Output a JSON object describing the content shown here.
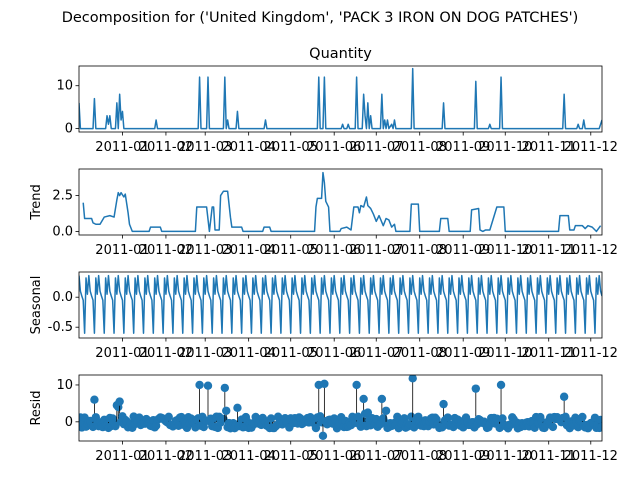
{
  "figure": {
    "suptitle": "Decomposition for ('United Kingdom', 'PACK 3 IRON ON DOG PATCHES')"
  },
  "chart_data": [
    {
      "type": "line",
      "title": "Quantity",
      "ylabel": "",
      "ylim": [
        -0.8,
        14.6
      ],
      "yticks": [
        0,
        10
      ],
      "xlim": [
        "2010-12-01",
        "2011-12-09"
      ],
      "xticks": [
        "2011-01",
        "2011-02",
        "2011-03",
        "2011-04",
        "2011-05",
        "2011-06",
        "2011-07",
        "2011-08",
        "2011-09",
        "2011-10",
        "2011-11",
        "2011-12"
      ],
      "points": [
        [
          "2010-12-01",
          6
        ],
        [
          "2010-12-02",
          0
        ],
        [
          "2010-12-11",
          0
        ],
        [
          "2010-12-12",
          7
        ],
        [
          "2010-12-13",
          0
        ],
        [
          "2010-12-20",
          0
        ],
        [
          "2010-12-21",
          3
        ],
        [
          "2010-12-22",
          1
        ],
        [
          "2010-12-23",
          3
        ],
        [
          "2010-12-24",
          0
        ],
        [
          "2010-12-27",
          0
        ],
        [
          "2010-12-28",
          6
        ],
        [
          "2010-12-29",
          0
        ],
        [
          "2010-12-30",
          8
        ],
        [
          "2010-12-31",
          2
        ],
        [
          "2011-01-01",
          4
        ],
        [
          "2011-01-02",
          0
        ],
        [
          "2011-01-24",
          0
        ],
        [
          "2011-01-25",
          2
        ],
        [
          "2011-01-26",
          0
        ],
        [
          "2011-02-24",
          0
        ],
        [
          "2011-02-25",
          12
        ],
        [
          "2011-02-26",
          0
        ],
        [
          "2011-03-02",
          0
        ],
        [
          "2011-03-03",
          12
        ],
        [
          "2011-03-04",
          0
        ],
        [
          "2011-03-14",
          0
        ],
        [
          "2011-03-15",
          12
        ],
        [
          "2011-03-16",
          0
        ],
        [
          "2011-03-17",
          2
        ],
        [
          "2011-03-18",
          0
        ],
        [
          "2011-03-23",
          0
        ],
        [
          "2011-03-24",
          4
        ],
        [
          "2011-03-25",
          0
        ],
        [
          "2011-04-12",
          0
        ],
        [
          "2011-04-13",
          2
        ],
        [
          "2011-04-14",
          0
        ],
        [
          "2011-05-20",
          0
        ],
        [
          "2011-05-21",
          12
        ],
        [
          "2011-05-22",
          0
        ],
        [
          "2011-05-24",
          0
        ],
        [
          "2011-05-25",
          12
        ],
        [
          "2011-05-26",
          0
        ],
        [
          "2011-06-06",
          0
        ],
        [
          "2011-06-07",
          1
        ],
        [
          "2011-06-08",
          0
        ],
        [
          "2011-06-10",
          0
        ],
        [
          "2011-06-11",
          1
        ],
        [
          "2011-06-12",
          0
        ],
        [
          "2011-06-16",
          0
        ],
        [
          "2011-06-17",
          12
        ],
        [
          "2011-06-18",
          0
        ],
        [
          "2011-06-21",
          0
        ],
        [
          "2011-06-22",
          8
        ],
        [
          "2011-06-23",
          3
        ],
        [
          "2011-06-24",
          0
        ],
        [
          "2011-06-25",
          6
        ],
        [
          "2011-06-26",
          0
        ],
        [
          "2011-06-27",
          3
        ],
        [
          "2011-06-28",
          0
        ],
        [
          "2011-07-04",
          0
        ],
        [
          "2011-07-05",
          8
        ],
        [
          "2011-07-06",
          0
        ],
        [
          "2011-07-07",
          2
        ],
        [
          "2011-07-08",
          0
        ],
        [
          "2011-07-09",
          2
        ],
        [
          "2011-07-10",
          0
        ],
        [
          "2011-07-12",
          1
        ],
        [
          "2011-07-13",
          0
        ],
        [
          "2011-07-14",
          2
        ],
        [
          "2011-07-15",
          0
        ],
        [
          "2011-07-26",
          0
        ],
        [
          "2011-07-27",
          14
        ],
        [
          "2011-07-28",
          0
        ],
        [
          "2011-08-17",
          0
        ],
        [
          "2011-08-18",
          6
        ],
        [
          "2011-08-19",
          0
        ],
        [
          "2011-09-09",
          0
        ],
        [
          "2011-09-10",
          11
        ],
        [
          "2011-09-11",
          0
        ],
        [
          "2011-09-19",
          0
        ],
        [
          "2011-09-20",
          1
        ],
        [
          "2011-09-21",
          0
        ],
        [
          "2011-09-27",
          0
        ],
        [
          "2011-09-28",
          12
        ],
        [
          "2011-09-29",
          0
        ],
        [
          "2011-11-11",
          0
        ],
        [
          "2011-11-12",
          8
        ],
        [
          "2011-11-13",
          0
        ],
        [
          "2011-11-21",
          0
        ],
        [
          "2011-11-22",
          1
        ],
        [
          "2011-11-23",
          0
        ],
        [
          "2011-11-25",
          0
        ],
        [
          "2011-11-26",
          2
        ],
        [
          "2011-11-27",
          0
        ],
        [
          "2011-12-07",
          0
        ],
        [
          "2011-12-09",
          2
        ]
      ]
    },
    {
      "type": "line",
      "title": "",
      "ylabel": "Trend",
      "ylim": [
        -0.25,
        4.35
      ],
      "yticks": [
        0.0,
        2.5
      ],
      "xlim": [
        "2010-12-01",
        "2011-12-09"
      ],
      "xticks": [
        "2011-01",
        "2011-02",
        "2011-03",
        "2011-04",
        "2011-05",
        "2011-06",
        "2011-07",
        "2011-08",
        "2011-09",
        "2011-10",
        "2011-11",
        "2011-12"
      ],
      "points": [
        [
          "2010-12-04",
          2.0
        ],
        [
          "2010-12-05",
          0.9
        ],
        [
          "2010-12-10",
          0.9
        ],
        [
          "2010-12-11",
          0.6
        ],
        [
          "2010-12-13",
          0.5
        ],
        [
          "2010-12-16",
          0.5
        ],
        [
          "2010-12-19",
          1.0
        ],
        [
          "2010-12-23",
          1.1
        ],
        [
          "2010-12-26",
          1.0
        ],
        [
          "2010-12-28",
          2.2
        ],
        [
          "2010-12-29",
          2.7
        ],
        [
          "2010-12-30",
          2.5
        ],
        [
          "2010-12-31",
          2.7
        ],
        [
          "2011-01-02",
          2.4
        ],
        [
          "2011-01-03",
          2.6
        ],
        [
          "2011-01-05",
          1.3
        ],
        [
          "2011-01-06",
          0.5
        ],
        [
          "2011-01-08",
          0.0
        ],
        [
          "2011-01-20",
          0.0
        ],
        [
          "2011-01-21",
          0.3
        ],
        [
          "2011-01-28",
          0.3
        ],
        [
          "2011-01-29",
          0.0
        ],
        [
          "2011-02-22",
          0.0
        ],
        [
          "2011-02-23",
          1.7
        ],
        [
          "2011-03-02",
          1.7
        ],
        [
          "2011-03-04",
          0.0
        ],
        [
          "2011-03-06",
          1.7
        ],
        [
          "2011-03-07",
          1.7
        ],
        [
          "2011-03-08",
          0.1
        ],
        [
          "2011-03-11",
          0.1
        ],
        [
          "2011-03-12",
          2.5
        ],
        [
          "2011-03-14",
          2.8
        ],
        [
          "2011-03-17",
          2.8
        ],
        [
          "2011-03-19",
          1.0
        ],
        [
          "2011-03-20",
          0.3
        ],
        [
          "2011-03-27",
          0.3
        ],
        [
          "2011-03-28",
          0.0
        ],
        [
          "2011-04-11",
          0.0
        ],
        [
          "2011-04-12",
          0.3
        ],
        [
          "2011-04-16",
          0.3
        ],
        [
          "2011-04-17",
          0.0
        ],
        [
          "2011-05-18",
          0.0
        ],
        [
          "2011-05-19",
          1.7
        ],
        [
          "2011-05-20",
          2.3
        ],
        [
          "2011-05-23",
          2.3
        ],
        [
          "2011-05-24",
          4.1
        ],
        [
          "2011-05-25",
          3.4
        ],
        [
          "2011-05-26",
          2.1
        ],
        [
          "2011-05-28",
          1.7
        ],
        [
          "2011-05-29",
          0.0
        ],
        [
          "2011-06-05",
          0.0
        ],
        [
          "2011-06-06",
          0.2
        ],
        [
          "2011-06-10",
          0.3
        ],
        [
          "2011-06-13",
          0.1
        ],
        [
          "2011-06-15",
          1.7
        ],
        [
          "2011-06-18",
          1.7
        ],
        [
          "2011-06-19",
          1.3
        ],
        [
          "2011-06-20",
          1.8
        ],
        [
          "2011-06-22",
          1.7
        ],
        [
          "2011-06-24",
          2.4
        ],
        [
          "2011-06-25",
          1.8
        ],
        [
          "2011-06-27",
          1.6
        ],
        [
          "2011-06-29",
          1.2
        ],
        [
          "2011-07-01",
          0.7
        ],
        [
          "2011-07-03",
          1.1
        ],
        [
          "2011-07-06",
          0.4
        ],
        [
          "2011-07-08",
          0.9
        ],
        [
          "2011-07-10",
          0.8
        ],
        [
          "2011-07-12",
          0.3
        ],
        [
          "2011-07-14",
          0.5
        ],
        [
          "2011-07-15",
          0.0
        ],
        [
          "2011-07-25",
          0.0
        ],
        [
          "2011-07-26",
          1.9
        ],
        [
          "2011-07-31",
          1.9
        ],
        [
          "2011-08-01",
          0.0
        ],
        [
          "2011-08-15",
          0.0
        ],
        [
          "2011-08-16",
          0.9
        ],
        [
          "2011-08-21",
          0.9
        ],
        [
          "2011-08-22",
          0.0
        ],
        [
          "2011-09-06",
          0.0
        ],
        [
          "2011-09-07",
          1.5
        ],
        [
          "2011-09-12",
          1.6
        ],
        [
          "2011-09-13",
          0.1
        ],
        [
          "2011-09-15",
          0.0
        ],
        [
          "2011-09-17",
          0.1
        ],
        [
          "2011-09-20",
          0.1
        ],
        [
          "2011-09-25",
          1.7
        ],
        [
          "2011-09-30",
          1.7
        ],
        [
          "2011-10-01",
          0.0
        ],
        [
          "2011-11-08",
          0.0
        ],
        [
          "2011-11-09",
          1.1
        ],
        [
          "2011-11-15",
          1.1
        ],
        [
          "2011-11-16",
          0.1
        ],
        [
          "2011-11-19",
          0.1
        ],
        [
          "2011-11-20",
          0.4
        ],
        [
          "2011-11-25",
          0.4
        ],
        [
          "2011-11-27",
          0.2
        ],
        [
          "2011-11-29",
          0.4
        ],
        [
          "2011-12-02",
          0.3
        ],
        [
          "2011-12-05",
          0.0
        ],
        [
          "2011-12-08",
          0.4
        ]
      ]
    },
    {
      "type": "line",
      "title": "",
      "ylabel": "Seasonal",
      "ylim": [
        -0.68,
        0.42
      ],
      "yticks": [
        0.0,
        -0.5
      ],
      "xlim": [
        "2010-12-01",
        "2011-12-09"
      ],
      "xticks": [
        "2011-01",
        "2011-02",
        "2011-03",
        "2011-04",
        "2011-05",
        "2011-06",
        "2011-07",
        "2011-08",
        "2011-09",
        "2011-10",
        "2011-11",
        "2011-12"
      ],
      "period_days": 7,
      "weekly_pattern": [
        0.36,
        0.1,
        0.02,
        -0.05,
        -0.6,
        0.32,
        0.05
      ]
    },
    {
      "type": "scatter",
      "title": "",
      "ylabel": "Resid",
      "ylim": [
        -5.2,
        12.7
      ],
      "yticks": [
        0,
        10
      ],
      "xlim": [
        "2010-12-01",
        "2011-12-09"
      ],
      "xticks": [
        "2011-01",
        "2011-02",
        "2011-03",
        "2011-04",
        "2011-05",
        "2011-06",
        "2011-07",
        "2011-08",
        "2011-09",
        "2011-10",
        "2011-11",
        "2011-12"
      ],
      "outliers": [
        [
          "2010-12-12",
          6.0
        ],
        [
          "2010-12-28",
          4.5
        ],
        [
          "2010-12-29",
          4.0
        ],
        [
          "2010-12-30",
          5.5
        ],
        [
          "2011-01-01",
          1.5
        ],
        [
          "2011-02-25",
          10.0
        ],
        [
          "2011-03-03",
          9.8
        ],
        [
          "2011-03-15",
          9.2
        ],
        [
          "2011-03-16",
          3.0
        ],
        [
          "2011-03-24",
          3.8
        ],
        [
          "2011-05-21",
          10.0
        ],
        [
          "2011-05-22",
          1.5
        ],
        [
          "2011-05-24",
          -3.8
        ],
        [
          "2011-05-25",
          10.3
        ],
        [
          "2011-06-17",
          10.0
        ],
        [
          "2011-06-22",
          6.2
        ],
        [
          "2011-06-23",
          2.2
        ],
        [
          "2011-06-25",
          2.5
        ],
        [
          "2011-07-05",
          6.2
        ],
        [
          "2011-07-08",
          3.0
        ],
        [
          "2011-07-27",
          11.8
        ],
        [
          "2011-08-18",
          4.8
        ],
        [
          "2011-09-10",
          9.0
        ],
        [
          "2011-09-28",
          10.0
        ],
        [
          "2011-11-12",
          6.8
        ],
        [
          "2011-12-08",
          0.5
        ]
      ]
    }
  ]
}
